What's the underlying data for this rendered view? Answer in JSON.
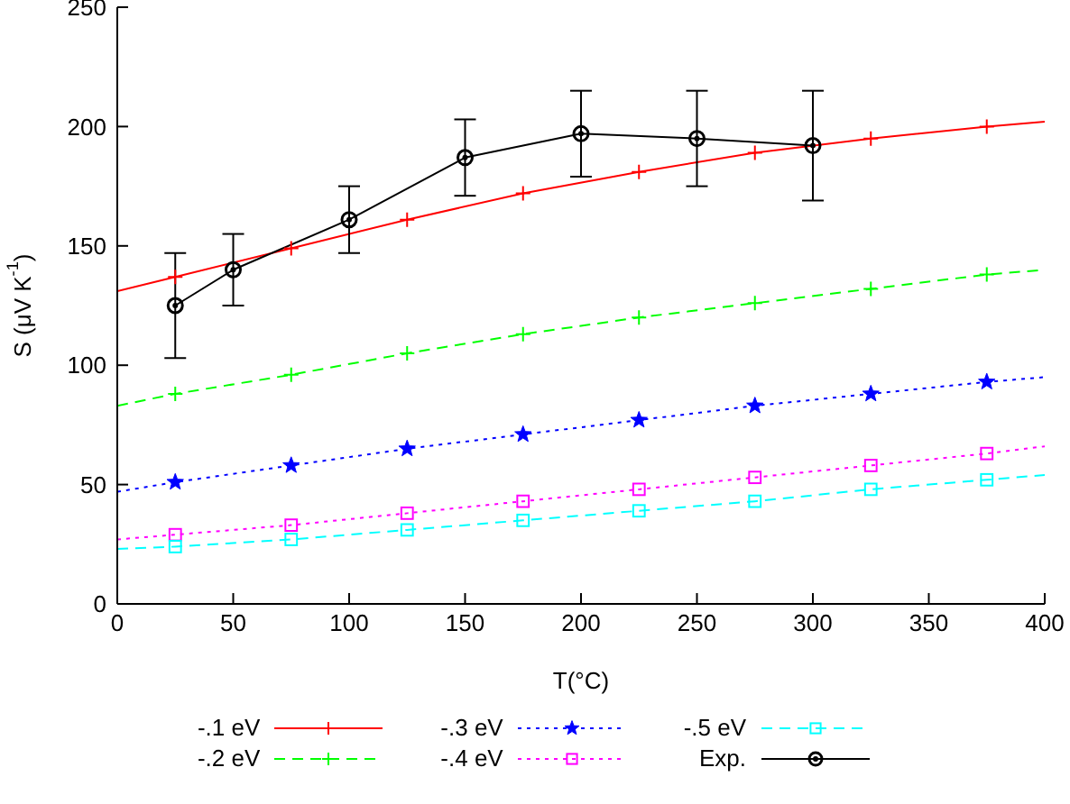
{
  "chart_data": {
    "type": "line",
    "xlabel": "T(°C)",
    "ylabel": "S (μV K$^{-1}$)",
    "xlim": [
      0,
      400
    ],
    "xticks": [
      0,
      50,
      100,
      150,
      200,
      250,
      300,
      350,
      400
    ],
    "ylim": [
      0,
      250
    ],
    "yticks": [
      0,
      50,
      100,
      150,
      200,
      250
    ],
    "legend": "bottom",
    "series": [
      {
        "name": "-.1 eV",
        "color": "#ff0000",
        "marker": "cross",
        "line_style": "solid",
        "x": [
          0,
          25,
          75,
          125,
          175,
          225,
          275,
          325,
          375,
          400
        ],
        "values": [
          131,
          137,
          149,
          161,
          172,
          181,
          189,
          195,
          200,
          202
        ]
      },
      {
        "name": "-.2 eV",
        "color": "#00ff00",
        "marker": "cross",
        "line_style": "dashed",
        "x": [
          0,
          25,
          75,
          125,
          175,
          225,
          275,
          325,
          375,
          400
        ],
        "values": [
          83,
          88,
          96,
          105,
          113,
          120,
          126,
          132,
          138,
          140
        ]
      },
      {
        "name": "-.3 eV",
        "color": "#0000ff",
        "marker": "star",
        "line_style": "dotted",
        "x": [
          0,
          25,
          75,
          125,
          175,
          225,
          275,
          325,
          375,
          400
        ],
        "values": [
          47,
          51,
          58,
          65,
          71,
          77,
          83,
          88,
          93,
          95
        ]
      },
      {
        "name": "-.4 eV",
        "color": "#ff00ff",
        "marker": "square",
        "line_style": "dotted",
        "x": [
          0,
          25,
          75,
          125,
          175,
          225,
          275,
          325,
          375,
          400
        ],
        "values": [
          27,
          29,
          33,
          38,
          43,
          48,
          53,
          58,
          63,
          66
        ]
      },
      {
        "name": "-.5 eV",
        "color": "#00ffff",
        "marker": "square",
        "line_style": "dashed",
        "x": [
          0,
          25,
          75,
          125,
          175,
          225,
          275,
          325,
          375,
          400
        ],
        "values": [
          23,
          24,
          27,
          31,
          35,
          39,
          43,
          48,
          52,
          54
        ]
      },
      {
        "name": "Exp.",
        "color": "#000000",
        "marker": "circle",
        "line_style": "solid",
        "x": [
          25,
          50,
          100,
          150,
          200,
          250,
          300
        ],
        "values": [
          125,
          140,
          161,
          187,
          197,
          195,
          192
        ],
        "errors": [
          22,
          15,
          14,
          16,
          18,
          20,
          23
        ]
      }
    ]
  }
}
